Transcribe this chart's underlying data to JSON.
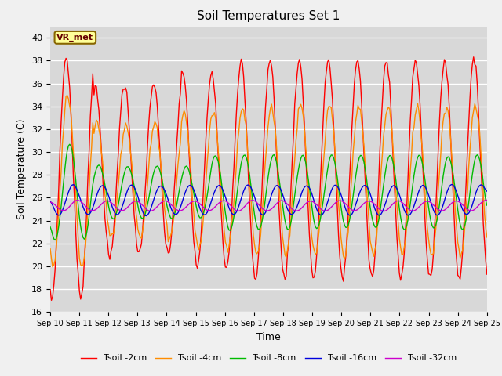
{
  "title": "Soil Temperatures Set 1",
  "xlabel": "Time",
  "ylabel": "Soil Temperature (C)",
  "ylim": [
    16,
    41
  ],
  "yticks": [
    16,
    18,
    20,
    22,
    24,
    26,
    28,
    30,
    32,
    34,
    36,
    38,
    40
  ],
  "bg_color": "#d8d8d8",
  "fig_color": "#f0f0f0",
  "annotation": "VR_met",
  "legend": [
    {
      "label": "Tsoil -2cm",
      "color": "#ff0000"
    },
    {
      "label": "Tsoil -4cm",
      "color": "#ff8c00"
    },
    {
      "label": "Tsoil -8cm",
      "color": "#00bb00"
    },
    {
      "label": "Tsoil -16cm",
      "color": "#0000dd"
    },
    {
      "label": "Tsoil -32cm",
      "color": "#cc00cc"
    }
  ],
  "xticklabels": [
    "Sep 10",
    "Sep 11",
    "Sep 12",
    "Sep 13",
    "Sep 14",
    "Sep 15",
    "Sep 16",
    "Sep 17",
    "Sep 18",
    "Sep 19",
    "Sep 20",
    "Sep 21",
    "Sep 22",
    "Sep 23",
    "Sep 24",
    "Sep 25"
  ]
}
